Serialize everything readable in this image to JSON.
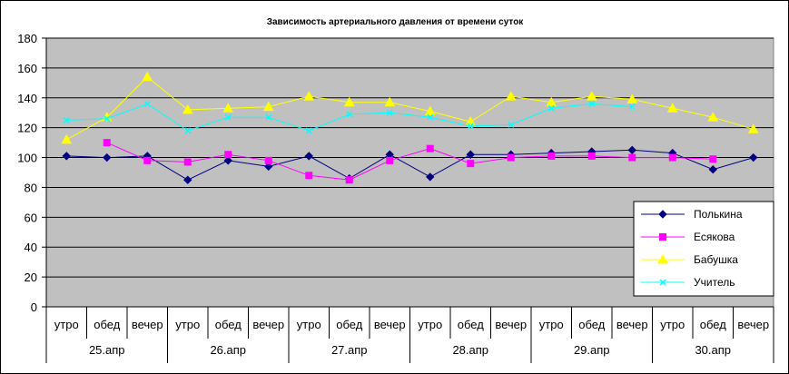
{
  "chart_data": {
    "type": "line",
    "title": "Зависимость артериального давления от времени суток",
    "xlabel": "",
    "ylabel": "",
    "ylim": [
      0,
      180
    ],
    "yticks": [
      0,
      20,
      40,
      60,
      80,
      100,
      120,
      140,
      160,
      180
    ],
    "ytick_labels": [
      "0",
      "20",
      "40",
      "60",
      "80",
      "100",
      "120",
      "140",
      "160",
      "180"
    ],
    "grid": true,
    "legend_position": "right",
    "plot_bg": "#c0c0c0",
    "categories": [
      "утро",
      "обед",
      "вечер",
      "утро",
      "обед",
      "вечер",
      "утро",
      "обед",
      "вечер",
      "утро",
      "обед",
      "вечер",
      "утро",
      "обед",
      "вечер",
      "утро",
      "обед",
      "вечер"
    ],
    "groups": [
      {
        "label": "25.апр"
      },
      {
        "label": "26.апр"
      },
      {
        "label": "27.апр"
      },
      {
        "label": "28.апр"
      },
      {
        "label": "29.апр"
      },
      {
        "label": "30.апр"
      }
    ],
    "series": [
      {
        "name": "Полькина",
        "color": "#000080",
        "marker": "diamond",
        "values": [
          101,
          100,
          101,
          85,
          98,
          94,
          101,
          86,
          102,
          87,
          102,
          102,
          103,
          104,
          105,
          103,
          92,
          100
        ]
      },
      {
        "name": "Есякова",
        "color": "#ff00ff",
        "marker": "square",
        "values": [
          null,
          110,
          98,
          97,
          102,
          98,
          88,
          85,
          98,
          106,
          96,
          100,
          101,
          101,
          100,
          100,
          99,
          null
        ]
      },
      {
        "name": "Бабушка",
        "color": "#ffff00",
        "marker": "triangle",
        "values": [
          112,
          127,
          154,
          132,
          133,
          134,
          141,
          137,
          137,
          131,
          124,
          141,
          137,
          141,
          139,
          133,
          127,
          119
        ]
      },
      {
        "name": "Учитель",
        "color": "#00ffff",
        "marker": "x",
        "values": [
          125,
          126,
          136,
          118,
          127,
          127,
          118,
          129,
          130,
          127,
          121,
          122,
          133,
          136,
          134,
          null,
          null,
          null
        ]
      }
    ]
  }
}
